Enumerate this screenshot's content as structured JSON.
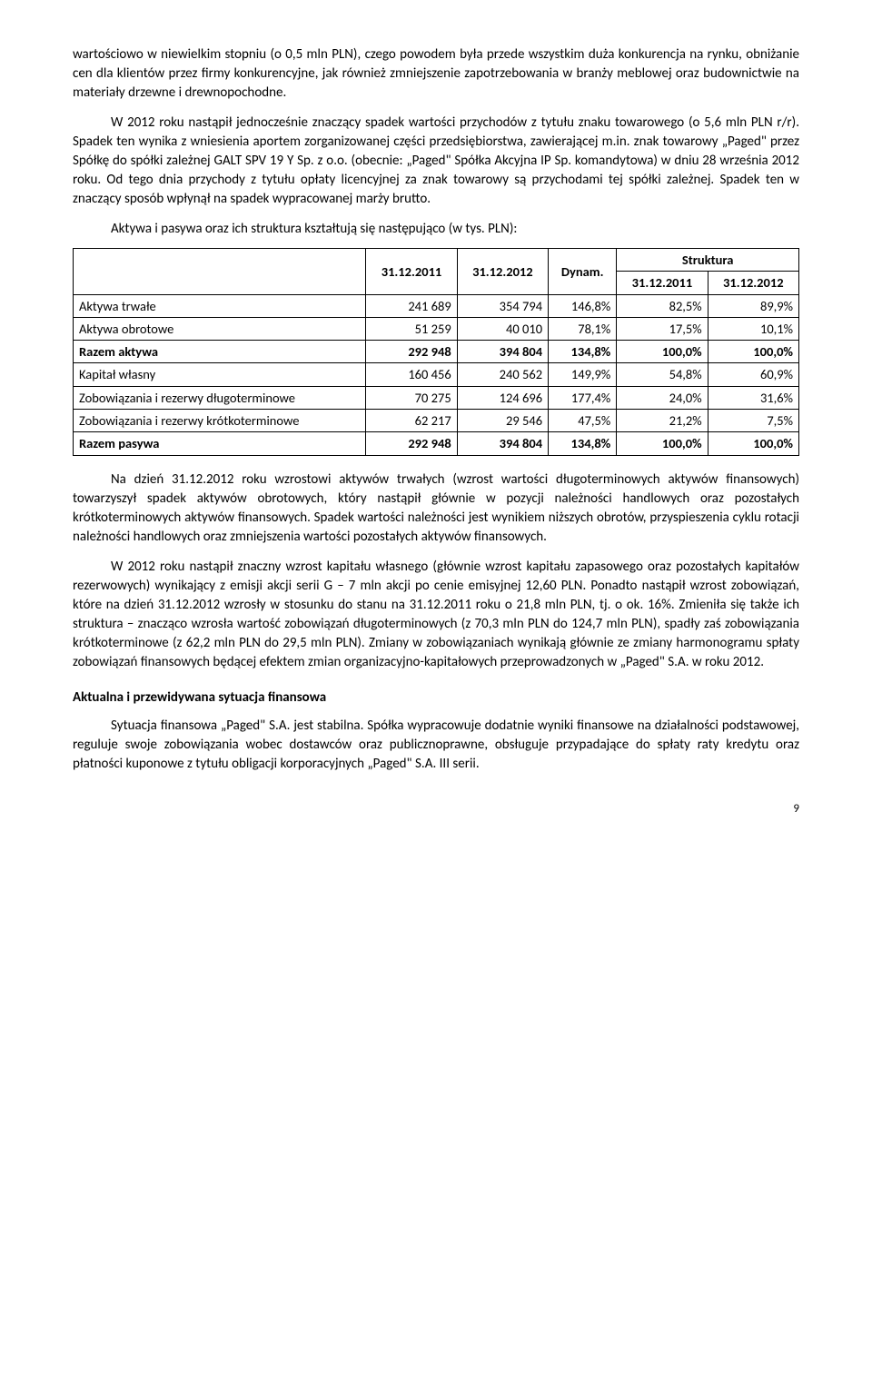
{
  "paragraphs": {
    "p1": "wartościowo w niewielkim stopniu (o 0,5 mln PLN), czego powodem była przede wszystkim duża konkurencja na rynku, obniżanie cen dla klientów przez firmy konkurencyjne, jak również zmniejszenie zapotrzebowania w branży meblowej oraz budownictwie na materiały drzewne i drewnopochodne.",
    "p2": "W 2012 roku nastąpił jednocześnie znaczący spadek wartości przychodów z tytułu znaku towarowego (o 5,6 mln PLN r/r). Spadek ten wynika z wniesienia aportem zorganizowanej części przedsiębiorstwa, zawierającej m.in. znak towarowy „Paged\" przez Spółkę do spółki zależnej GALT SPV 19 Y Sp. z o.o. (obecnie: „Paged\" Spółka Akcyjna IP Sp. komandytowa) w dniu 28 września 2012 roku. Od tego dnia przychody z tytułu opłaty licencyjnej za znak towarowy są przychodami tej spółki zależnej. Spadek ten w znaczący sposób wpłynął na spadek wypracowanej marży brutto.",
    "tableIntro": "Aktywa i pasywa oraz ich struktura kształtują się następująco (w tys. PLN):",
    "p3": "Na dzień 31.12.2012 roku wzrostowi aktywów trwałych (wzrost wartości długoterminowych aktywów finansowych) towarzyszył spadek aktywów obrotowych, który nastąpił głównie w pozycji należności handlowych oraz pozostałych krótkoterminowych aktywów finansowych. Spadek wartości należności jest wynikiem niższych obrotów, przyspieszenia cyklu rotacji należności handlowych oraz zmniejszenia wartości pozostałych aktywów finansowych.",
    "p4": "W 2012 roku nastąpił znaczny wzrost kapitału własnego (głównie wzrost kapitału zapasowego oraz pozostałych kapitałów rezerwowych) wynikający z emisji akcji serii G – 7 mln akcji po cenie emisyjnej 12,60 PLN. Ponadto nastąpił wzrost zobowiązań, które na dzień 31.12.2012 wzrosły w stosunku do stanu na 31.12.2011 roku o 21,8 mln PLN, tj. o ok. 16%. Zmieniła się także ich struktura – znacząco wzrosła wartość zobowiązań długoterminowych (z 70,3 mln PLN do 124,7 mln PLN), spadły zaś zobowiązania krótkoterminowe (z 62,2 mln PLN do 29,5 mln PLN). Zmiany w zobowiązaniach wynikają głównie ze zmiany harmonogramu spłaty zobowiązań finansowych będącej efektem zmian organizacyjno-kapitałowych przeprowadzonych w „Paged\" S.A. w roku 2012.",
    "h3": "Aktualna i przewidywana sytuacja finansowa",
    "p5": "Sytuacja finansowa „Paged\" S.A. jest stabilna. Spółka wypracowuje dodatnie wyniki finansowe na działalności podstawowej, reguluje swoje zobowiązania wobec dostawców oraz publicznoprawne, obsługuje przypadające do spłaty raty kredytu oraz płatności kuponowe z tytułu obligacji korporacyjnych „Paged\" S.A. III serii."
  },
  "table": {
    "headers": {
      "c1": "31.12.2011",
      "c2": "31.12.2012",
      "c3": "Dynam.",
      "c4": "Struktura",
      "c4a": "31.12.2011",
      "c4b": "31.12.2012"
    },
    "rows": [
      {
        "label": "Aktywa trwałe",
        "v1": "241 689",
        "v2": "354 794",
        "v3": "146,8%",
        "v4": "82,5%",
        "v5": "89,9%",
        "bold": false
      },
      {
        "label": "Aktywa obrotowe",
        "v1": "51 259",
        "v2": "40 010",
        "v3": "78,1%",
        "v4": "17,5%",
        "v5": "10,1%",
        "bold": false
      },
      {
        "label": "Razem aktywa",
        "v1": "292 948",
        "v2": "394 804",
        "v3": "134,8%",
        "v4": "100,0%",
        "v5": "100,0%",
        "bold": true
      },
      {
        "label": "Kapitał własny",
        "v1": "160 456",
        "v2": "240 562",
        "v3": "149,9%",
        "v4": "54,8%",
        "v5": "60,9%",
        "bold": false
      },
      {
        "label": "Zobowiązania i rezerwy długoterminowe",
        "v1": "70 275",
        "v2": "124 696",
        "v3": "177,4%",
        "v4": "24,0%",
        "v5": "31,6%",
        "bold": false
      },
      {
        "label": "Zobowiązania i rezerwy krótkoterminowe",
        "v1": "62 217",
        "v2": "29 546",
        "v3": "47,5%",
        "v4": "21,2%",
        "v5": "7,5%",
        "bold": false
      },
      {
        "label": "Razem pasywa",
        "v1": "292 948",
        "v2": "394 804",
        "v3": "134,8%",
        "v4": "100,0%",
        "v5": "100,0%",
        "bold": true
      }
    ]
  },
  "pageNumber": "9"
}
